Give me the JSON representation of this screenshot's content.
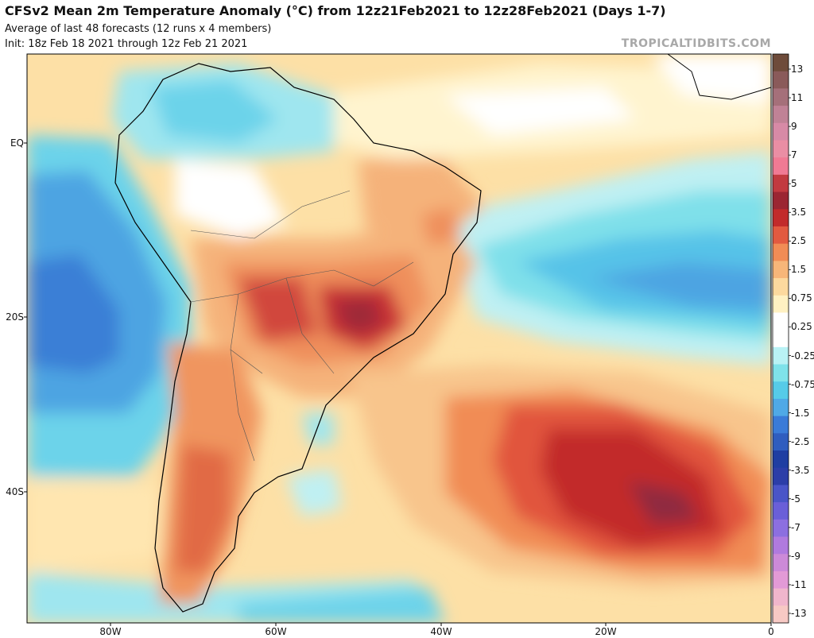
{
  "header": {
    "title": "CFSv2 Mean 2m Temperature Anomaly (°C) from 12z21Feb2021 to 12z28Feb2021 (Days 1-7)",
    "subtitle": "Average of last 48 forecasts (12 runs x 4 members)",
    "init": "Init: 18z Feb 18 2021 through 12z Feb 21 2021",
    "credit": "TROPICALTIDBITS.COM"
  },
  "map": {
    "region": "South America and South Atlantic",
    "lat_labels": [
      "EQ",
      "20S",
      "40S"
    ],
    "lon_labels": [
      "80W",
      "60W",
      "40W",
      "20W",
      "0"
    ]
  },
  "colorbar": {
    "labels": [
      "13",
      "11",
      "9",
      "7",
      "5",
      "3.5",
      "2.5",
      "1.5",
      "0.75",
      "0.25",
      "-0.25",
      "-0.75",
      "-1.5",
      "-2.5",
      "-3.5",
      "-5",
      "-7",
      "-9",
      "-11",
      "-13"
    ],
    "colors": [
      "#6e4b3a",
      "#8a5a5a",
      "#a5707a",
      "#c08296",
      "#d78aa6",
      "#ea8ea4",
      "#f07a94",
      "#c23a40",
      "#9b2632",
      "#c22b2b",
      "#e25a40",
      "#f18c55",
      "#f7b679",
      "#fcd99e",
      "#fff1c2",
      "#ffffff",
      "#ffffff",
      "#b9f2f5",
      "#7fe2ea",
      "#56cbe8",
      "#4fa9e6",
      "#3a7bd8",
      "#2f5dbf",
      "#1f3ea2",
      "#2c3ea8",
      "#4a55c8",
      "#6a5fd8",
      "#8c6fe0",
      "#b07ade",
      "#cc8ad8",
      "#e29ad6",
      "#f0b6cc",
      "#f7c9c4"
    ]
  }
}
